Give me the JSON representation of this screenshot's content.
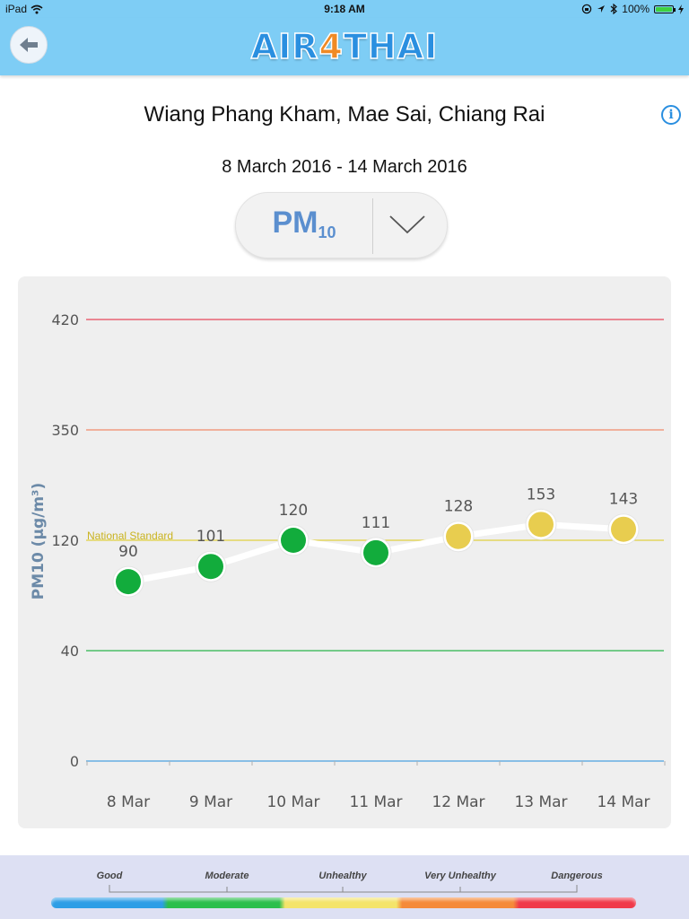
{
  "status_bar": {
    "device": "iPad",
    "time": "9:18 AM",
    "battery": "100%"
  },
  "header": {
    "logo_part1": "AIR",
    "logo_part2": "4",
    "logo_part3": "THAI"
  },
  "location": "Wiang Phang Kham, Mae Sai, Chiang Rai",
  "date_range": "8 March 2016 - 14 March 2016",
  "pollutant": {
    "main": "PM",
    "sub": "10"
  },
  "legend": [
    "Good",
    "Moderate",
    "Unhealthy",
    "Very  Unhealthy",
    "Dangerous"
  ],
  "colors": {
    "good": "#12ac3c",
    "moderate": "#e8cd4f",
    "line_420": "#e8485a",
    "line_350": "#f08a6a",
    "line_120": "#e0d040",
    "line_40": "#2bb34a",
    "line_0": "#4aa0e0"
  },
  "chart_data": {
    "type": "line",
    "ylabel": "PM10 (µg/m³)",
    "categories": [
      "8 Mar",
      "9 Mar",
      "10 Mar",
      "11 Mar",
      "12 Mar",
      "13 Mar",
      "14 Mar"
    ],
    "values": [
      90,
      101,
      120,
      111,
      128,
      153,
      143
    ],
    "point_levels": [
      "good",
      "good",
      "good",
      "good",
      "moderate",
      "moderate",
      "moderate"
    ],
    "y_ticks": [
      0,
      40,
      120,
      350,
      420
    ],
    "reference_line": {
      "value": 120,
      "label": "National Standard"
    },
    "grid": false
  }
}
